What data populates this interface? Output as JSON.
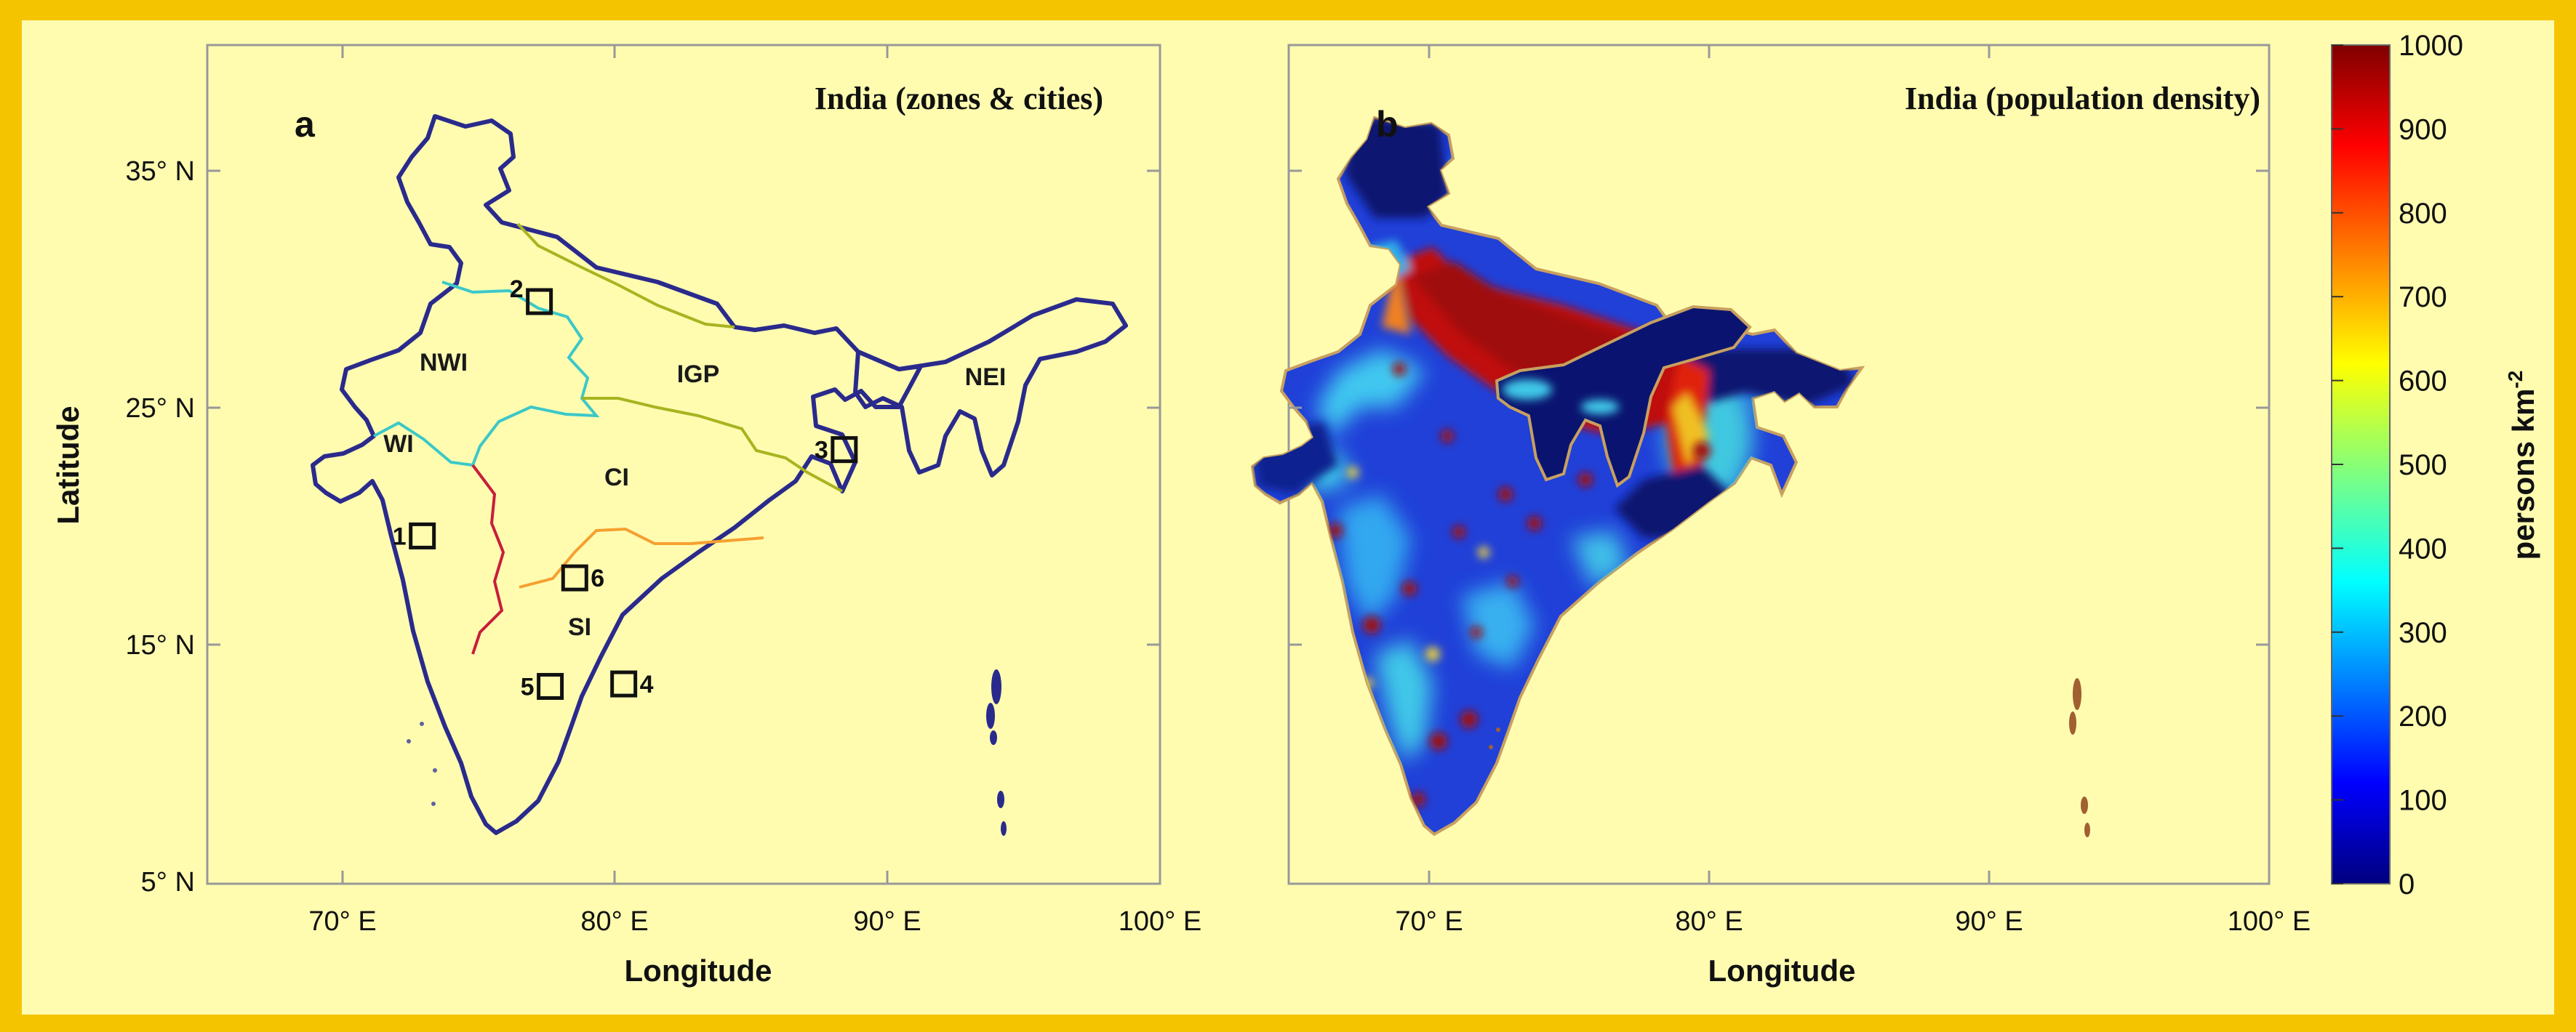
{
  "panels": [
    {
      "letter": "a",
      "title": "India (zones & cities)",
      "lon_ticks": [
        "70° E",
        "80° E",
        "90° E",
        "100° E"
      ],
      "lat_ticks": [
        "35° N",
        "25° N",
        "15° N",
        "5° N"
      ],
      "xlabel": "Longitude",
      "ylabel": "Latitude",
      "extent": {
        "lon": [
          65,
          100
        ],
        "lat": [
          5,
          39
        ]
      },
      "zones": [
        "NWI",
        "IGP",
        "NEI",
        "WI",
        "CI",
        "SI"
      ],
      "cities": [
        {
          "id": "1",
          "lon": 72.9,
          "lat": 19.1
        },
        {
          "id": "2",
          "lon": 77.2,
          "lat": 28.6
        },
        {
          "id": "3",
          "lon": 88.4,
          "lat": 22.6
        },
        {
          "id": "4",
          "lon": 80.3,
          "lat": 13.1
        },
        {
          "id": "5",
          "lon": 77.6,
          "lat": 13.0
        },
        {
          "id": "6",
          "lon": 78.5,
          "lat": 17.4
        }
      ]
    },
    {
      "letter": "b",
      "title": "India (population density)",
      "lon_ticks": [
        "70° E",
        "80° E",
        "90° E",
        "100° E"
      ],
      "xlabel": "Longitude",
      "extent": {
        "lon": [
          65,
          100
        ],
        "lat": [
          5,
          39
        ]
      }
    }
  ],
  "colorbar": {
    "label": "persons km",
    "label_sup": "-2",
    "range": [
      0,
      1000
    ],
    "ticks": [
      "1000",
      "900",
      "800",
      "700",
      "600",
      "500",
      "400",
      "300",
      "200",
      "100",
      "0"
    ],
    "colormap": "jet"
  },
  "colors": {
    "background": "#FFFCB0",
    "frame": "#F5C400",
    "india_outline": "#2A2A8C",
    "nwi_boundary": "#3CC8C8",
    "igp_boundary": "#A8B420",
    "wi_boundary": "#C81E3C",
    "ci_si_boundary": "#F5A030"
  }
}
